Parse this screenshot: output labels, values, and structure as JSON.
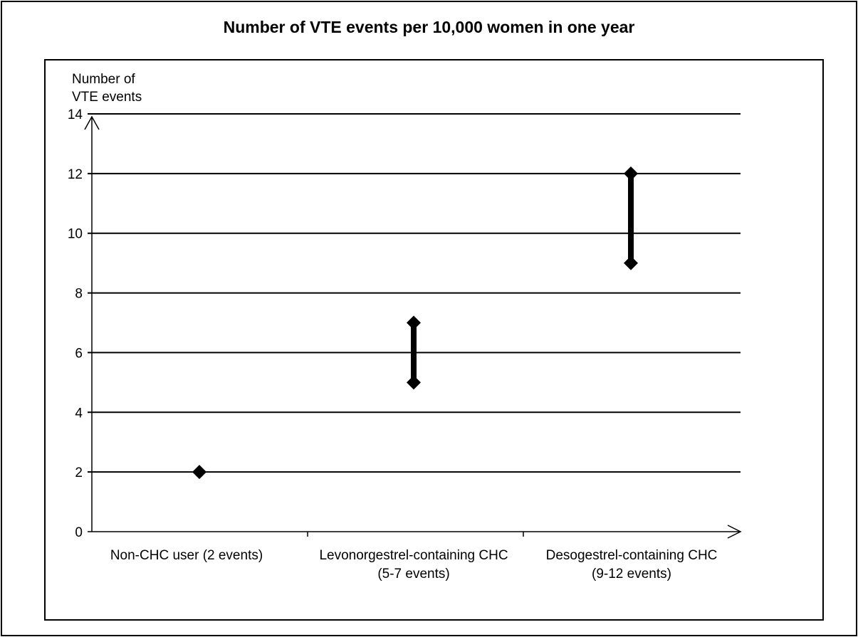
{
  "chart_data": {
    "type": "range",
    "title": "Number of VTE events per 10,000 women in one year",
    "ylabel_lines": [
      "Number of",
      "VTE events"
    ],
    "xlabel": "",
    "ylim": [
      0,
      14
    ],
    "yticks": [
      0,
      2,
      4,
      6,
      8,
      10,
      12,
      14
    ],
    "grid": true,
    "categories": [
      {
        "lines": [
          "Non-CHC user (2 events)"
        ],
        "low": 2,
        "high": 2
      },
      {
        "lines": [
          "Levonorgestrel-containing CHC",
          "(5-7 events)"
        ],
        "low": 5,
        "high": 7
      },
      {
        "lines": [
          "Desogestrel-containing CHC",
          "(9-12 events)"
        ],
        "low": 9,
        "high": 12
      }
    ],
    "colors": {
      "marker": "#000000",
      "grid": "#000000"
    }
  }
}
